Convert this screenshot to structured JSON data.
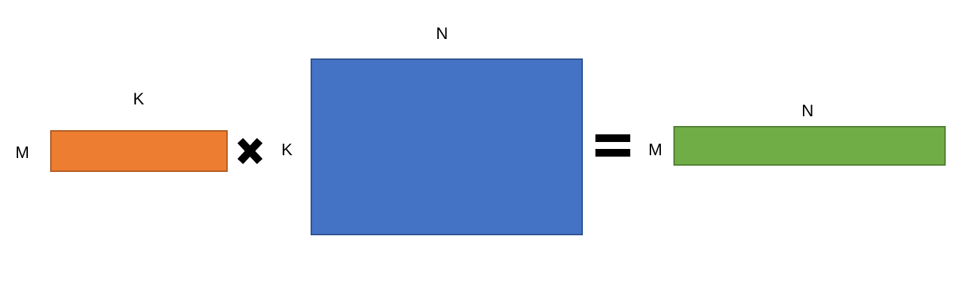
{
  "diagram": {
    "matrix_a": {
      "row_label": "M",
      "col_label": "K",
      "fill": "#ED7D31",
      "border": "#AE5A21"
    },
    "matrix_b": {
      "row_label": "K",
      "col_label": "N",
      "fill": "#4472C4",
      "border": "#2F528F"
    },
    "matrix_c": {
      "row_label": "M",
      "col_label": "N",
      "fill": "#70AD47",
      "border": "#507E32"
    },
    "operators": {
      "multiply": "multiply-icon",
      "equals": "equals-icon"
    }
  }
}
